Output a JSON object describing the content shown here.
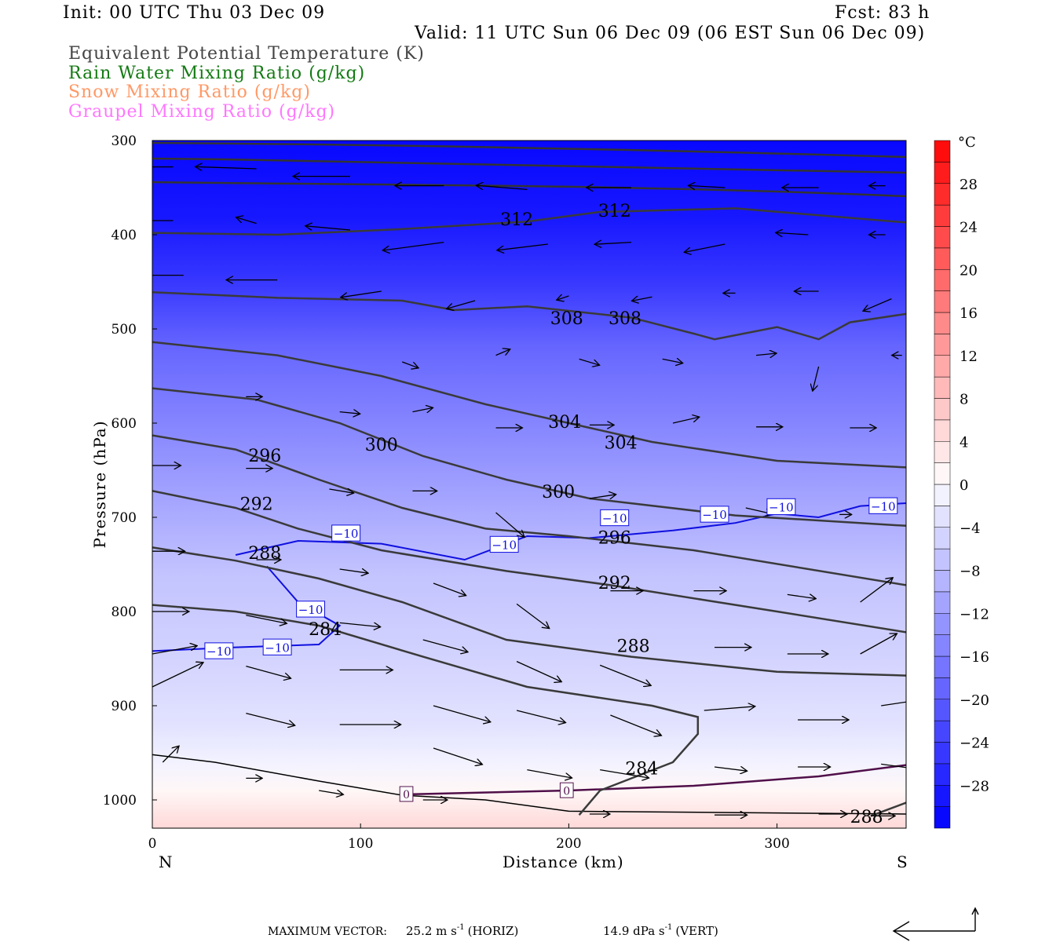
{
  "header": {
    "init": "Init: 00 UTC Thu 03 Dec 09",
    "fcst": "Fcst:   83 h",
    "valid": "Valid: 11 UTC Sun 06 Dec 09 (06 EST Sun 06 Dec 09)"
  },
  "legend": [
    {
      "text": "Equivalent Potential Temperature (K)",
      "color": "#444444"
    },
    {
      "text": "Rain Water Mixing Ratio (g/kg)",
      "color": "#137a13"
    },
    {
      "text": "Snow Mixing Ratio (g/kg)",
      "color": "#ff9966"
    },
    {
      "text": "Graupel Mixing Ratio (g/kg)",
      "color": "#ff77ff"
    }
  ],
  "footer": {
    "max_vector_label": "MAXIMUM VECTOR:",
    "horiz": "25.2 m s",
    "horiz_unit": "(HORIZ)",
    "vert": "14.9 dPa s",
    "vert_unit": "(VERT)",
    "exp": "-1"
  },
  "chart_data": {
    "type": "contour-cross-section",
    "xlabel": "Distance (km)",
    "ylabel": "Pressure (hPa)",
    "xlim": [
      0,
      362
    ],
    "ylim": [
      300,
      1030
    ],
    "xticks": [
      "0",
      "100",
      "200",
      "300"
    ],
    "xtick_values": [
      0,
      100,
      200,
      300
    ],
    "yticks": [
      "300",
      "400",
      "500",
      "600",
      "700",
      "800",
      "900",
      "1000"
    ],
    "ytick_values": [
      300,
      400,
      500,
      600,
      700,
      800,
      900,
      1000
    ],
    "left_end": "N",
    "right_end": "S",
    "colorbar": {
      "unit": "°C",
      "min": -32,
      "max": 32,
      "step": 2,
      "labels": [
        "28",
        "24",
        "20",
        "16",
        "12",
        "8",
        "4",
        "0",
        "−4",
        "−8",
        "−12",
        "−16",
        "−20",
        "−24",
        "−28"
      ],
      "label_values": [
        28,
        24,
        20,
        16,
        12,
        8,
        4,
        0,
        -4,
        -8,
        -12,
        -16,
        -20,
        -24,
        -28
      ]
    },
    "temperature_profile": [
      [
        300,
        -32
      ],
      [
        380,
        -29
      ],
      [
        450,
        -25
      ],
      [
        520,
        -20
      ],
      [
        600,
        -15
      ],
      [
        680,
        -11
      ],
      [
        760,
        -8
      ],
      [
        850,
        -5.5
      ],
      [
        920,
        -3
      ],
      [
        960,
        -1
      ],
      [
        990,
        1.5
      ],
      [
        1030,
        4
      ]
    ],
    "theta_e_contours": [
      {
        "value": 312,
        "points": [
          [
            0,
            398
          ],
          [
            60,
            400
          ],
          [
            120,
            394
          ],
          [
            180,
            386
          ],
          [
            214,
            376
          ],
          [
            280,
            372
          ],
          [
            362,
            387
          ]
        ],
        "labels": [
          [
            175,
            383
          ],
          [
            222,
            374
          ]
        ]
      },
      {
        "value": 308,
        "points": [
          [
            0,
            461
          ],
          [
            60,
            467
          ],
          [
            120,
            470
          ],
          [
            145,
            480
          ],
          [
            180,
            476
          ],
          [
            230,
            488
          ],
          [
            260,
            505
          ],
          [
            270,
            511
          ],
          [
            300,
            498
          ],
          [
            320,
            511
          ],
          [
            335,
            493
          ],
          [
            362,
            484
          ]
        ],
        "labels": [
          [
            199,
            488
          ],
          [
            227,
            488
          ]
        ]
      },
      {
        "value": 304,
        "points": [
          [
            0,
            514
          ],
          [
            60,
            528
          ],
          [
            110,
            550
          ],
          [
            160,
            580
          ],
          [
            210,
            605
          ],
          [
            240,
            620
          ],
          [
            300,
            640
          ],
          [
            362,
            647
          ]
        ],
        "labels": [
          [
            198,
            598
          ],
          [
            225,
            620
          ]
        ]
      },
      {
        "value": 300,
        "points": [
          [
            0,
            563
          ],
          [
            50,
            575
          ],
          [
            90,
            600
          ],
          [
            130,
            635
          ],
          [
            170,
            660
          ],
          [
            210,
            680
          ],
          [
            280,
            698
          ],
          [
            362,
            709
          ]
        ],
        "labels": [
          [
            110,
            622
          ],
          [
            195,
            672
          ]
        ]
      },
      {
        "value": 296,
        "points": [
          [
            0,
            613
          ],
          [
            40,
            628
          ],
          [
            80,
            660
          ],
          [
            120,
            690
          ],
          [
            160,
            712
          ],
          [
            200,
            720
          ],
          [
            260,
            735
          ],
          [
            362,
            772
          ]
        ],
        "labels": [
          [
            54,
            634
          ],
          [
            222,
            721
          ]
        ]
      },
      {
        "value": 292,
        "points": [
          [
            0,
            672
          ],
          [
            40,
            690
          ],
          [
            70,
            712
          ],
          [
            110,
            735
          ],
          [
            170,
            757
          ],
          [
            220,
            772
          ],
          [
            300,
            800
          ],
          [
            362,
            822
          ]
        ],
        "labels": [
          [
            50,
            685
          ],
          [
            222,
            769
          ]
        ]
      },
      {
        "value": 288,
        "points": [
          [
            0,
            732
          ],
          [
            40,
            746
          ],
          [
            80,
            765
          ],
          [
            120,
            790
          ],
          [
            170,
            830
          ],
          [
            230,
            848
          ],
          [
            300,
            864
          ],
          [
            362,
            868
          ]
        ],
        "labels": [
          [
            54,
            737
          ],
          [
            231,
            836
          ]
        ]
      },
      {
        "value": 284,
        "points": [
          [
            0,
            793
          ],
          [
            40,
            800
          ],
          [
            80,
            815
          ],
          [
            130,
            848
          ],
          [
            180,
            880
          ],
          [
            240,
            900
          ],
          [
            262,
            912
          ],
          [
            262,
            930
          ],
          [
            250,
            960
          ],
          [
            215,
            990
          ],
          [
            205,
            1016
          ]
        ],
        "labels": [
          [
            83,
            818
          ],
          [
            235,
            966
          ]
        ]
      },
      {
        "value": 288,
        "points": [
          [
            345,
            1017
          ],
          [
            362,
            1003
          ]
        ],
        "labels": [
          [
            343,
            1017
          ]
        ]
      }
    ],
    "isotherm_minus10": {
      "value": "−10",
      "points": [
        [
          40,
          740
        ],
        [
          70,
          725
        ],
        [
          110,
          728
        ],
        [
          150,
          745
        ],
        [
          180,
          720
        ],
        [
          210,
          722
        ],
        [
          250,
          714
        ],
        [
          280,
          706
        ],
        [
          300,
          696
        ],
        [
          320,
          700
        ],
        [
          340,
          688
        ],
        [
          362,
          685
        ]
      ],
      "labels": [
        [
          93,
          717
        ],
        [
          169,
          729
        ],
        [
          222,
          709
        ],
        [
          270,
          697
        ],
        [
          302,
          689
        ],
        [
          351,
          688
        ]
      ]
    },
    "isotherm_minus10_lower": {
      "points": [
        [
          0,
          842
        ],
        [
          40,
          838
        ],
        [
          80,
          835
        ],
        [
          90,
          815
        ],
        [
          70,
          790
        ],
        [
          55,
          752
        ]
      ],
      "labels": [
        [
          32,
          842
        ],
        [
          60,
          838
        ],
        [
          76,
          800
        ]
      ]
    },
    "isotherm_zero": {
      "value": "0",
      "points": [
        [
          125,
          994
        ],
        [
          200,
          990
        ],
        [
          260,
          985
        ],
        [
          320,
          975
        ],
        [
          362,
          963
        ]
      ],
      "labels": [
        [
          122,
          994
        ],
        [
          199,
          990
        ]
      ]
    },
    "ground": [
      [
        0,
        952
      ],
      [
        30,
        960
      ],
      [
        80,
        980
      ],
      [
        120,
        995
      ],
      [
        160,
        1000
      ],
      [
        200,
        1012
      ],
      [
        362,
        1015
      ]
    ],
    "wind_vectors": [
      [
        10,
        328,
        -30,
        0
      ],
      [
        50,
        330,
        -30,
        -1
      ],
      [
        95,
        338,
        -28,
        0
      ],
      [
        140,
        348,
        -24,
        0
      ],
      [
        180,
        352,
        -25,
        -2
      ],
      [
        230,
        350,
        -22,
        0
      ],
      [
        275,
        350,
        -18,
        -1
      ],
      [
        320,
        350,
        -18,
        0
      ],
      [
        352,
        348,
        -8,
        0
      ],
      [
        10,
        385,
        -28,
        0
      ],
      [
        50,
        388,
        -10,
        -3
      ],
      [
        95,
        395,
        -22,
        -2
      ],
      [
        140,
        408,
        -30,
        4
      ],
      [
        190,
        410,
        -25,
        3
      ],
      [
        230,
        408,
        -18,
        1
      ],
      [
        275,
        410,
        -20,
        4
      ],
      [
        315,
        400,
        -16,
        -1
      ],
      [
        352,
        400,
        -8,
        0
      ],
      [
        15,
        443,
        -28,
        0
      ],
      [
        60,
        448,
        -25,
        0
      ],
      [
        110,
        460,
        -20,
        3
      ],
      [
        155,
        470,
        -14,
        4
      ],
      [
        200,
        465,
        -6,
        2
      ],
      [
        240,
        466,
        -10,
        2
      ],
      [
        280,
        462,
        -6,
        0
      ],
      [
        320,
        460,
        -12,
        0
      ],
      [
        355,
        468,
        -14,
        6
      ],
      [
        120,
        535,
        8,
        3
      ],
      [
        165,
        528,
        7,
        -3
      ],
      [
        205,
        532,
        10,
        3
      ],
      [
        245,
        532,
        10,
        2
      ],
      [
        290,
        528,
        10,
        -1
      ],
      [
        320,
        540,
        -3,
        12
      ],
      [
        360,
        528,
        -5,
        0
      ],
      [
        45,
        572,
        8,
        0
      ],
      [
        90,
        588,
        10,
        1
      ],
      [
        125,
        588,
        10,
        -2
      ],
      [
        165,
        605,
        13,
        0
      ],
      [
        210,
        602,
        12,
        0
      ],
      [
        250,
        600,
        13,
        -3
      ],
      [
        290,
        604,
        13,
        0
      ],
      [
        335,
        605,
        13,
        0
      ],
      [
        0,
        645,
        14,
        0
      ],
      [
        45,
        648,
        13,
        0
      ],
      [
        85,
        670,
        12,
        2
      ],
      [
        125,
        672,
        12,
        0
      ],
      [
        165,
        695,
        14,
        12
      ],
      [
        210,
        680,
        13,
        -2
      ],
      [
        285,
        690,
        13,
        3
      ],
      [
        330,
        697,
        6,
        0
      ],
      [
        0,
        736,
        16,
        0
      ],
      [
        50,
        745,
        12,
        0
      ],
      [
        90,
        755,
        14,
        2
      ],
      [
        135,
        770,
        16,
        6
      ],
      [
        175,
        792,
        16,
        12
      ],
      [
        220,
        778,
        16,
        0
      ],
      [
        260,
        778,
        16,
        0
      ],
      [
        305,
        782,
        14,
        2
      ],
      [
        340,
        790,
        16,
        -12
      ],
      [
        0,
        800,
        18,
        0
      ],
      [
        45,
        804,
        20,
        4
      ],
      [
        90,
        812,
        20,
        2
      ],
      [
        130,
        830,
        22,
        6
      ],
      [
        175,
        853,
        22,
        10
      ],
      [
        215,
        857,
        25,
        10
      ],
      [
        270,
        838,
        18,
        0
      ],
      [
        305,
        845,
        20,
        0
      ],
      [
        340,
        845,
        18,
        -10
      ],
      [
        0,
        845,
        22,
        -4
      ],
      [
        45,
        858,
        22,
        6
      ],
      [
        90,
        862,
        26,
        0
      ],
      [
        135,
        900,
        28,
        8
      ],
      [
        175,
        905,
        24,
        6
      ],
      [
        220,
        910,
        25,
        10
      ],
      [
        265,
        905,
        25,
        -2
      ],
      [
        310,
        915,
        25,
        0
      ],
      [
        350,
        900,
        20,
        -3
      ],
      [
        0,
        880,
        25,
        -12
      ],
      [
        45,
        908,
        24,
        6
      ],
      [
        90,
        920,
        30,
        0
      ],
      [
        135,
        945,
        24,
        8
      ],
      [
        180,
        968,
        22,
        4
      ],
      [
        215,
        968,
        24,
        4
      ],
      [
        270,
        965,
        16,
        2
      ],
      [
        310,
        965,
        16,
        0
      ],
      [
        350,
        962,
        22,
        3
      ],
      [
        5,
        960,
        8,
        -8
      ],
      [
        45,
        977,
        8,
        0
      ],
      [
        80,
        990,
        12,
        2
      ],
      [
        130,
        1000,
        12,
        0
      ],
      [
        210,
        1015,
        10,
        0
      ],
      [
        270,
        1016,
        16,
        0
      ],
      [
        320,
        1015,
        14,
        0
      ],
      [
        345,
        1017,
        12,
        0
      ]
    ]
  }
}
